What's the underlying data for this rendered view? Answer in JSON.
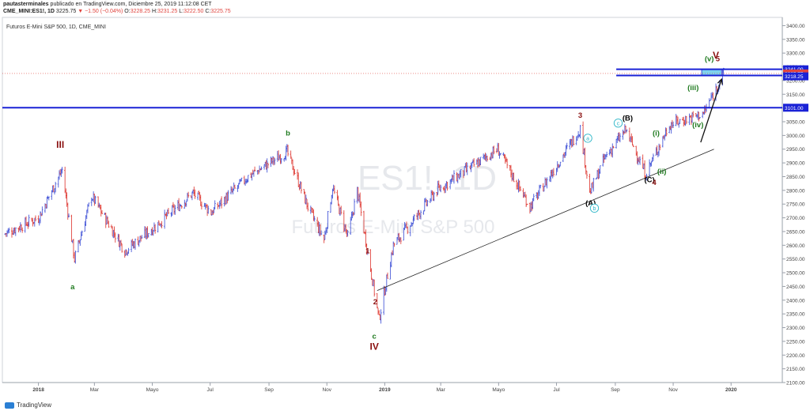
{
  "header": {
    "user": "pautasterminales",
    "published": "publicado en TradingView.com, Diciembre 25, 2019 11:12:08 CET",
    "symbol": "CME_MINI:ES1!, 1D",
    "last": "3225.75",
    "arrow": "▼",
    "change": "−1.50 (−0.04%)",
    "ohlc_o_label": "O:",
    "ohlc_o": "3228.25",
    "ohlc_h_label": "H:",
    "ohlc_h": "3231.25",
    "ohlc_l_label": "L:",
    "ohlc_l": "3222.50",
    "ohlc_c_label": "C:",
    "ohlc_c": "3225.75"
  },
  "chart_title": "Futuros E-Mini S&P 500, 1D, CME_MINI",
  "watermark": {
    "symbol": "ES1!, 1D",
    "name": "Futuros E-Mini S&P 500"
  },
  "footer": {
    "brand": "TradingView"
  },
  "colors": {
    "up": "#4a5bd9",
    "down": "#e0453f",
    "hline": "#1a22d6",
    "target": "#5ec8e8",
    "wave_red": "#8a1010",
    "wave_green": "#1f7a1f",
    "circle": "#2fb7c8"
  },
  "chart_data": {
    "type": "candlestick",
    "title": "Futuros E-Mini S&P 500, 1D, CME_MINI",
    "ylim": [
      2100,
      3430
    ],
    "y_ticks": [
      "3400.00",
      "3350.00",
      "3300.00",
      "3250.00",
      "3200.00",
      "3150.00",
      "3100.00",
      "3050.00",
      "3000.00",
      "2950.00",
      "2900.00",
      "2850.00",
      "2800.00",
      "2750.00",
      "2700.00",
      "2650.00",
      "2600.00",
      "2550.00",
      "2500.00",
      "2450.00",
      "2400.00",
      "2350.00",
      "2300.00",
      "2250.00",
      "2200.00",
      "2150.00",
      "2100.00"
    ],
    "x_ticks": [
      "2018",
      "Mar",
      "Mayo",
      "Jul",
      "Sep",
      "Nov",
      "2019",
      "Mar",
      "Mayo",
      "Jul",
      "Sep",
      "Nov",
      "2020"
    ],
    "x_tick_dates": [
      "2018-01-01",
      "2018-03-01",
      "2018-05-01",
      "2018-07-01",
      "2018-09-01",
      "2018-11-01",
      "2019-01-01",
      "2019-03-01",
      "2019-05-01",
      "2019-07-01",
      "2019-09-01",
      "2019-11-01",
      "2020-01-01"
    ],
    "price_path": [
      [
        "2017-11-25",
        2640
      ],
      [
        "2018-01-01",
        2700
      ],
      [
        "2018-01-26",
        2875
      ],
      [
        "2018-02-08",
        2550
      ],
      [
        "2018-02-26",
        2780
      ],
      [
        "2018-04-02",
        2580
      ],
      [
        "2018-05-01",
        2660
      ],
      [
        "2018-06-13",
        2790
      ],
      [
        "2018-07-02",
        2720
      ],
      [
        "2018-08-10",
        2850
      ],
      [
        "2018-09-20",
        2940
      ],
      [
        "2018-10-12",
        2740
      ],
      [
        "2018-10-29",
        2620
      ],
      [
        "2018-11-07",
        2810
      ],
      [
        "2018-11-23",
        2630
      ],
      [
        "2018-12-03",
        2800
      ],
      [
        "2018-12-26",
        2330
      ],
      [
        "2019-01-10",
        2600
      ],
      [
        "2019-02-25",
        2800
      ],
      [
        "2019-04-30",
        2950
      ],
      [
        "2019-06-03",
        2740
      ],
      [
        "2019-07-26",
        3025
      ],
      [
        "2019-08-05",
        2790
      ],
      [
        "2019-08-21",
        2920
      ],
      [
        "2019-09-12",
        3020
      ],
      [
        "2019-10-03",
        2860
      ],
      [
        "2019-10-28",
        3040
      ],
      [
        "2019-12-03",
        3080
      ],
      [
        "2019-12-24",
        3226
      ]
    ],
    "last_price": "3225.75",
    "levels": [
      {
        "label": "3241.00",
        "value": 3241
      },
      {
        "label": "3218.25",
        "value": 3218.25
      },
      {
        "label": "3101.00",
        "value": 3101
      }
    ],
    "annotations": [
      {
        "text": "III",
        "date": "2018-01-24",
        "price": 2955,
        "color": "wave_red"
      },
      {
        "text": "a",
        "date": "2018-02-06",
        "price": 2440,
        "color": "wave_green"
      },
      {
        "text": "b",
        "date": "2018-09-21",
        "price": 3000,
        "color": "wave_green"
      },
      {
        "text": "1",
        "date": "2018-12-14",
        "price": 2570,
        "color": "wave_red"
      },
      {
        "text": "2",
        "date": "2018-12-22",
        "price": 2385,
        "color": "wave_red"
      },
      {
        "text": "c",
        "date": "2018-12-21",
        "price": 2260,
        "color": "wave_green"
      },
      {
        "text": "IV",
        "date": "2018-12-21",
        "price": 2220,
        "color": "wave_red"
      },
      {
        "text": "3",
        "date": "2019-07-26",
        "price": 3065,
        "color": "wave_red"
      },
      {
        "text": "(A)",
        "date": "2019-08-06",
        "price": 2745,
        "color": "black"
      },
      {
        "text": "(B)",
        "date": "2019-09-14",
        "price": 3055,
        "color": "black"
      },
      {
        "text": "(C)",
        "date": "2019-10-07",
        "price": 2830,
        "color": "black"
      },
      {
        "text": "4",
        "date": "2019-10-12",
        "price": 2820,
        "color": "wave_red"
      },
      {
        "text": "(i)",
        "date": "2019-10-14",
        "price": 3000,
        "color": "wave_green"
      },
      {
        "text": "(ii)",
        "date": "2019-10-20",
        "price": 2860,
        "color": "wave_green"
      },
      {
        "text": "(iii)",
        "date": "2019-11-22",
        "price": 3165,
        "color": "wave_green"
      },
      {
        "text": "(iv)",
        "date": "2019-11-27",
        "price": 3030,
        "color": "wave_green"
      },
      {
        "text": "(v)",
        "date": "2019-12-09",
        "price": 3270,
        "color": "wave_green"
      },
      {
        "text": "V",
        "date": "2019-12-16",
        "price": 3280,
        "color": "wave_red"
      },
      {
        "text": "5",
        "date": "2019-12-18",
        "price": 3270,
        "color": "wave_red"
      }
    ],
    "circled": [
      {
        "text": "a",
        "date": "2019-08-03",
        "price": 2990
      },
      {
        "text": "b",
        "date": "2019-08-10",
        "price": 2735
      },
      {
        "text": "c",
        "date": "2019-09-04",
        "price": 3045
      }
    ],
    "trendline": [
      [
        "2018-12-24",
        2435
      ],
      [
        "2019-12-14",
        2950
      ]
    ],
    "arrow": [
      [
        "2019-11-30",
        2975
      ],
      [
        "2019-12-22",
        3205
      ]
    ]
  }
}
